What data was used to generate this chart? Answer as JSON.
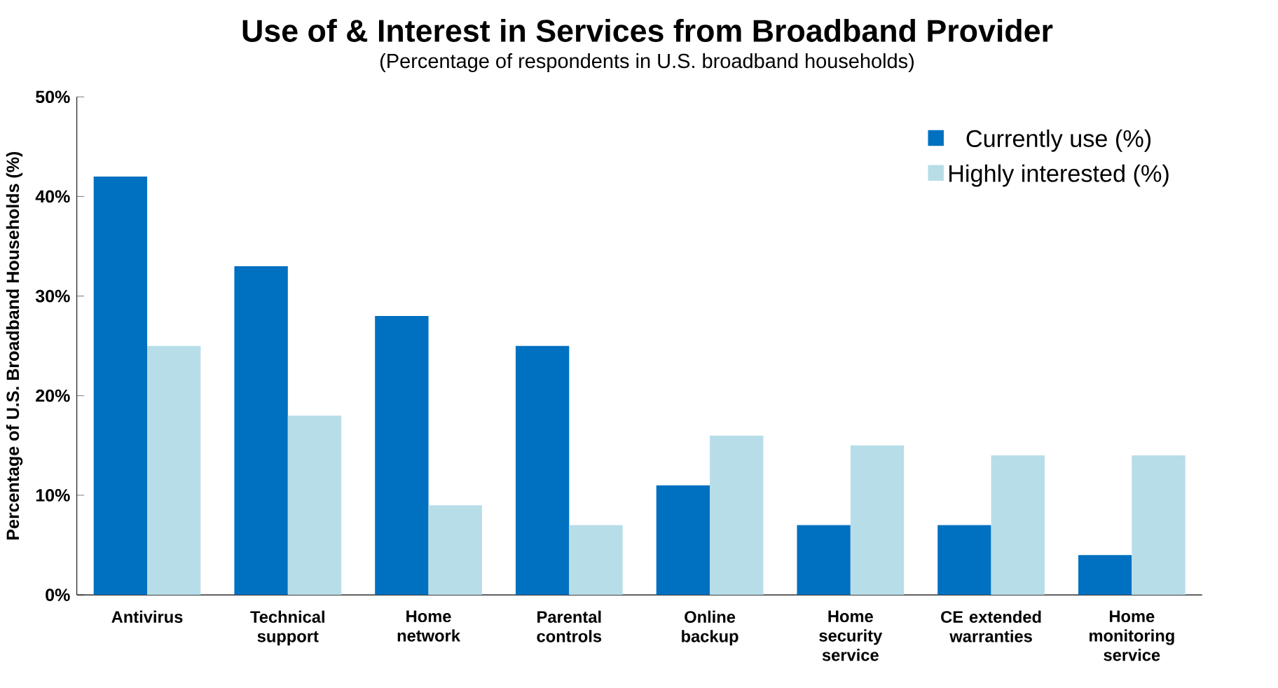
{
  "chart_data": {
    "type": "bar",
    "title": "Use of & Interest in Services from Broadband Provider",
    "subtitle": "(Percentage of respondents in U.S. broadband households)",
    "ylabel": "Percentage of U.S. Broadband Households (%)",
    "categories": [
      "Antivirus",
      "Technical support",
      "Home network",
      "Parental controls",
      "Online backup",
      "Home security service",
      "CE extended warranties",
      "Home monitoring service"
    ],
    "series": [
      {
        "name": "Currently use (%)",
        "color": "#0070c0",
        "values": [
          42,
          33,
          28,
          25,
          11,
          7,
          7,
          4
        ]
      },
      {
        "name": "Highly interested (%)",
        "color": "#b7dde8",
        "values": [
          25,
          18,
          9,
          7,
          16,
          15,
          14,
          14
        ]
      }
    ],
    "ylim": [
      0,
      50
    ],
    "yticks": [
      {
        "value": 0,
        "label": "0%"
      },
      {
        "value": 10,
        "label": "10%"
      },
      {
        "value": 20,
        "label": "20%"
      },
      {
        "value": 30,
        "label": "30%"
      },
      {
        "value": 40,
        "label": "40%"
      },
      {
        "value": 50,
        "label": "50%"
      }
    ],
    "grid": false,
    "legend": "top right"
  }
}
